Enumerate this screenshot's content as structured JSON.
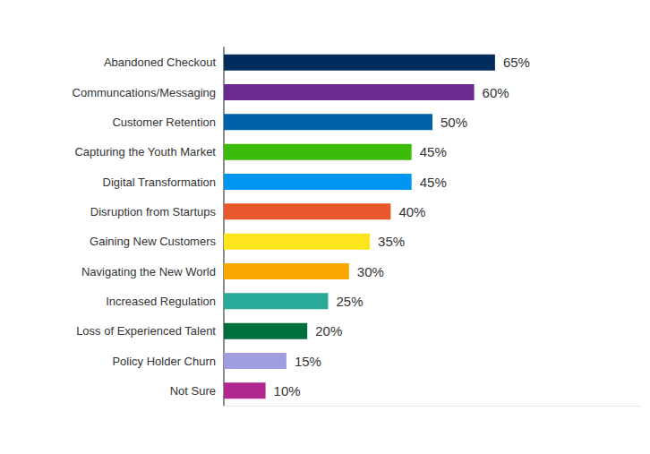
{
  "chart_data": {
    "type": "bar",
    "orientation": "horizontal",
    "categories": [
      "Abandoned Checkout",
      "Communcations/Messaging",
      "Customer Retention",
      "Capturing the Youth Market",
      "Digital Transformation",
      "Disruption from Startups",
      "Gaining New Customers",
      "Navigating the New World",
      "Increased Regulation",
      "Loss of Experienced Talent",
      "Policy Holder Churn",
      "Not Sure"
    ],
    "values": [
      65,
      60,
      50,
      45,
      45,
      40,
      35,
      30,
      25,
      20,
      15,
      10
    ],
    "value_labels": [
      "65%",
      "60%",
      "50%",
      "45%",
      "45%",
      "40%",
      "35%",
      "30%",
      "25%",
      "20%",
      "15%",
      "10%"
    ],
    "colors": [
      "#032c5e",
      "#6a2a8f",
      "#0062a8",
      "#3dbb0a",
      "#0096f0",
      "#e8582c",
      "#fce51a",
      "#fba800",
      "#2aaa9a",
      "#006f3c",
      "#a09ee0",
      "#b0288d"
    ],
    "xlim": [
      0,
      100
    ],
    "data_labels": true,
    "tick_labels": "y",
    "grid": false
  }
}
